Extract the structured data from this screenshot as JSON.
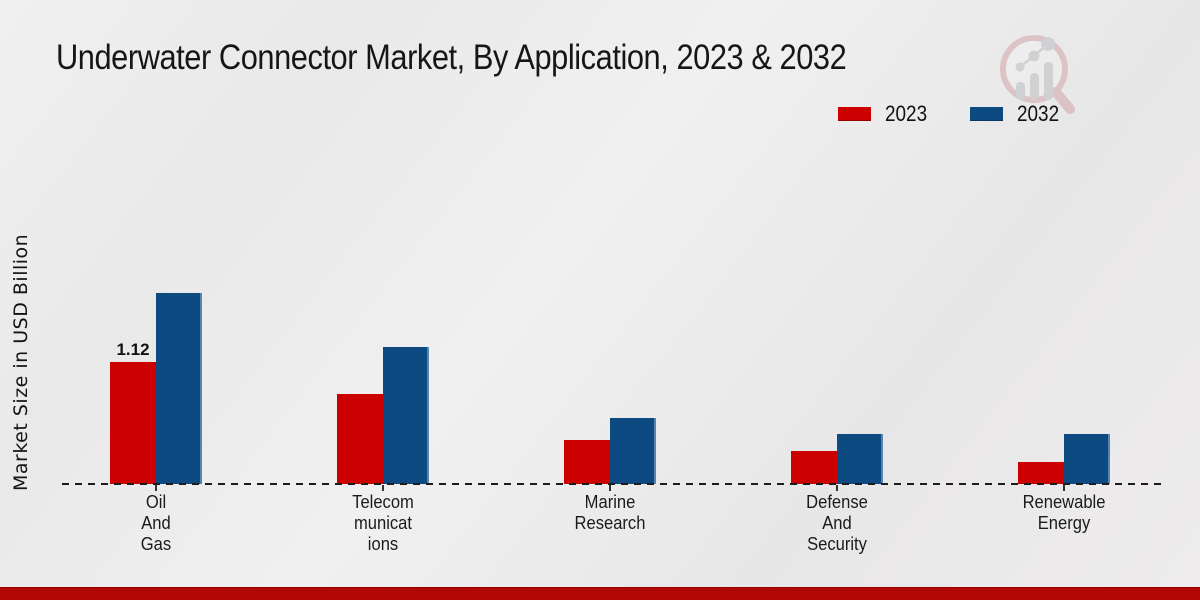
{
  "header": {
    "title": "Underwater Connector Market, By Application, 2023 & 2032"
  },
  "legend": {
    "items": [
      {
        "label": "2023",
        "color": "#cc0000"
      },
      {
        "label": "2032",
        "color": "#0d4a82"
      }
    ]
  },
  "axes": {
    "y_label": "Market Size in USD Billion"
  },
  "watermark": {
    "name": "market-research-future-logo"
  },
  "chart_data": {
    "type": "bar",
    "title": "Underwater Connector Market, By Application, 2023 & 2032",
    "ylabel": "Market Size in USD Billion",
    "xlabel": "",
    "categories": [
      "Oil And Gas",
      "Telecommunications",
      "Marine Research",
      "Defense And Security",
      "Renewable Energy"
    ],
    "category_label_lines": [
      [
        "Oil",
        "And",
        "Gas"
      ],
      [
        "Telecom",
        "municat",
        "ions"
      ],
      [
        "Marine",
        "Research"
      ],
      [
        "Defense",
        "And",
        "Security"
      ],
      [
        "Renewable",
        "Energy"
      ]
    ],
    "series": [
      {
        "name": "2023",
        "color": "#cc0000",
        "values": [
          1.12,
          0.83,
          0.4,
          0.3,
          0.2
        ]
      },
      {
        "name": "2032",
        "color": "#0d4a82",
        "values": [
          1.75,
          1.26,
          0.61,
          0.46,
          0.46
        ]
      }
    ],
    "value_labels": [
      {
        "series": "2023",
        "category_index": 0,
        "text": "1.12"
      }
    ],
    "ylim": [
      0,
      2
    ],
    "grid": false,
    "baseline": "dashed",
    "legend_position": "top-right"
  }
}
